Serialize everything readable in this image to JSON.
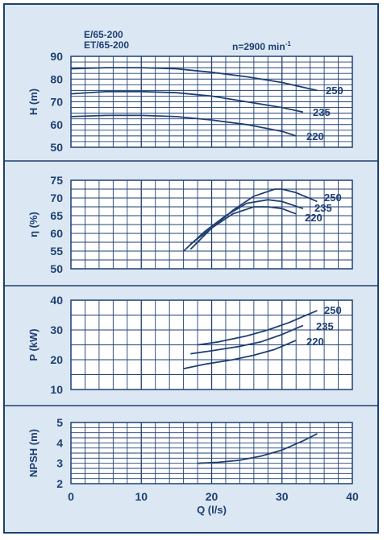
{
  "header": {
    "model_line_1": "E/65-200",
    "model_line_2": "ET/65-200",
    "speed_label": "n=2900 min"
  },
  "colors": {
    "frame": "#1f3f73",
    "panel_background": "#dbe8f3",
    "plot_background": "#ffffff",
    "grid": "#1f3f73",
    "curve": "#1f3f73",
    "text": "#1f3f73"
  },
  "chart_data": [
    {
      "type": "line",
      "ylabel": "H (m)",
      "xlim": [
        0,
        40
      ],
      "ylim": [
        50,
        90
      ],
      "yticks": [
        50,
        60,
        70,
        80,
        90
      ],
      "grid": true,
      "series": [
        {
          "name": "250",
          "x": [
            0,
            5,
            10,
            15,
            20,
            25,
            30,
            35
          ],
          "y": [
            84.5,
            85,
            85,
            84.5,
            83,
            81,
            78.5,
            75
          ]
        },
        {
          "name": "235",
          "x": [
            0,
            5,
            10,
            15,
            20,
            25,
            30,
            33
          ],
          "y": [
            73.5,
            74.5,
            74.5,
            74,
            72.5,
            70,
            67.5,
            65.5
          ]
        },
        {
          "name": "220",
          "x": [
            0,
            5,
            10,
            15,
            20,
            25,
            30,
            32
          ],
          "y": [
            63.5,
            64,
            64,
            63.5,
            62,
            60,
            57,
            55
          ]
        }
      ]
    },
    {
      "type": "line",
      "ylabel": "η (%)",
      "xlim": [
        0,
        40
      ],
      "ylim": [
        50,
        75
      ],
      "yticks": [
        50,
        55,
        60,
        65,
        70,
        75
      ],
      "grid": true,
      "series": [
        {
          "name": "250",
          "x": [
            17,
            20,
            23,
            26,
            29,
            30,
            32,
            35
          ],
          "y": [
            55.5,
            61.5,
            66.5,
            70.5,
            72.5,
            72.5,
            71.5,
            69
          ]
        },
        {
          "name": "235",
          "x": [
            16,
            19,
            22,
            25,
            28,
            30,
            33
          ],
          "y": [
            55,
            60.5,
            65,
            68.5,
            69.5,
            69,
            67
          ]
        },
        {
          "name": "220",
          "x": [
            17,
            20,
            23,
            26,
            28,
            30,
            32
          ],
          "y": [
            57,
            61.5,
            65.5,
            67.5,
            67.5,
            67,
            65.5
          ]
        }
      ]
    },
    {
      "type": "line",
      "ylabel": "P (kW)",
      "xlim": [
        0,
        40
      ],
      "ylim": [
        10,
        40
      ],
      "yticks": [
        10,
        20,
        30,
        40
      ],
      "grid": true,
      "series": [
        {
          "name": "250",
          "x": [
            18,
            21,
            25,
            28,
            31,
            35
          ],
          "y": [
            25,
            26,
            28,
            30,
            32.5,
            36.5
          ]
        },
        {
          "name": "235",
          "x": [
            17,
            20,
            24,
            27,
            30,
            33
          ],
          "y": [
            22,
            23,
            24.5,
            26,
            28.5,
            31.5
          ]
        },
        {
          "name": "220",
          "x": [
            16,
            19,
            23,
            26,
            29,
            32
          ],
          "y": [
            17,
            18.5,
            20,
            21.5,
            23.5,
            26.5
          ]
        }
      ]
    },
    {
      "type": "line",
      "ylabel": "NPSH (m)",
      "xlabel": "Q (l/s)",
      "xlim": [
        0,
        40
      ],
      "ylim": [
        2,
        5
      ],
      "yticks": [
        2,
        3,
        4,
        5
      ],
      "xticks": [
        0,
        10,
        20,
        30,
        40
      ],
      "grid": true,
      "series": [
        {
          "x": [
            18,
            21,
            24,
            27,
            30,
            33,
            35
          ],
          "y": [
            3,
            3.05,
            3.15,
            3.35,
            3.65,
            4.1,
            4.45
          ]
        }
      ]
    }
  ]
}
